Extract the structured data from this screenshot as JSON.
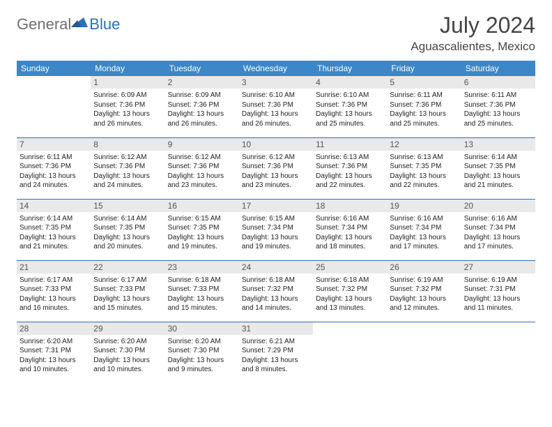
{
  "brand": {
    "general": "General",
    "blue": "Blue"
  },
  "title": "July 2024",
  "location": "Aguascalientes, Mexico",
  "colors": {
    "header_bg": "#3b87c8",
    "header_text": "#ffffff",
    "daynum_bg": "#e9e9e9",
    "border": "#2a71b8",
    "brand_gray": "#6f6f6f",
    "brand_blue": "#2a71b8"
  },
  "weekdays": [
    "Sunday",
    "Monday",
    "Tuesday",
    "Wednesday",
    "Thursday",
    "Friday",
    "Saturday"
  ],
  "weeks": [
    [
      {
        "day": "",
        "sunrise": "",
        "sunset": "",
        "daylight": ""
      },
      {
        "day": "1",
        "sunrise": "Sunrise: 6:09 AM",
        "sunset": "Sunset: 7:36 PM",
        "daylight": "Daylight: 13 hours and 26 minutes."
      },
      {
        "day": "2",
        "sunrise": "Sunrise: 6:09 AM",
        "sunset": "Sunset: 7:36 PM",
        "daylight": "Daylight: 13 hours and 26 minutes."
      },
      {
        "day": "3",
        "sunrise": "Sunrise: 6:10 AM",
        "sunset": "Sunset: 7:36 PM",
        "daylight": "Daylight: 13 hours and 26 minutes."
      },
      {
        "day": "4",
        "sunrise": "Sunrise: 6:10 AM",
        "sunset": "Sunset: 7:36 PM",
        "daylight": "Daylight: 13 hours and 25 minutes."
      },
      {
        "day": "5",
        "sunrise": "Sunrise: 6:11 AM",
        "sunset": "Sunset: 7:36 PM",
        "daylight": "Daylight: 13 hours and 25 minutes."
      },
      {
        "day": "6",
        "sunrise": "Sunrise: 6:11 AM",
        "sunset": "Sunset: 7:36 PM",
        "daylight": "Daylight: 13 hours and 25 minutes."
      }
    ],
    [
      {
        "day": "7",
        "sunrise": "Sunrise: 6:11 AM",
        "sunset": "Sunset: 7:36 PM",
        "daylight": "Daylight: 13 hours and 24 minutes."
      },
      {
        "day": "8",
        "sunrise": "Sunrise: 6:12 AM",
        "sunset": "Sunset: 7:36 PM",
        "daylight": "Daylight: 13 hours and 24 minutes."
      },
      {
        "day": "9",
        "sunrise": "Sunrise: 6:12 AM",
        "sunset": "Sunset: 7:36 PM",
        "daylight": "Daylight: 13 hours and 23 minutes."
      },
      {
        "day": "10",
        "sunrise": "Sunrise: 6:12 AM",
        "sunset": "Sunset: 7:36 PM",
        "daylight": "Daylight: 13 hours and 23 minutes."
      },
      {
        "day": "11",
        "sunrise": "Sunrise: 6:13 AM",
        "sunset": "Sunset: 7:36 PM",
        "daylight": "Daylight: 13 hours and 22 minutes."
      },
      {
        "day": "12",
        "sunrise": "Sunrise: 6:13 AM",
        "sunset": "Sunset: 7:35 PM",
        "daylight": "Daylight: 13 hours and 22 minutes."
      },
      {
        "day": "13",
        "sunrise": "Sunrise: 6:14 AM",
        "sunset": "Sunset: 7:35 PM",
        "daylight": "Daylight: 13 hours and 21 minutes."
      }
    ],
    [
      {
        "day": "14",
        "sunrise": "Sunrise: 6:14 AM",
        "sunset": "Sunset: 7:35 PM",
        "daylight": "Daylight: 13 hours and 21 minutes."
      },
      {
        "day": "15",
        "sunrise": "Sunrise: 6:14 AM",
        "sunset": "Sunset: 7:35 PM",
        "daylight": "Daylight: 13 hours and 20 minutes."
      },
      {
        "day": "16",
        "sunrise": "Sunrise: 6:15 AM",
        "sunset": "Sunset: 7:35 PM",
        "daylight": "Daylight: 13 hours and 19 minutes."
      },
      {
        "day": "17",
        "sunrise": "Sunrise: 6:15 AM",
        "sunset": "Sunset: 7:34 PM",
        "daylight": "Daylight: 13 hours and 19 minutes."
      },
      {
        "day": "18",
        "sunrise": "Sunrise: 6:16 AM",
        "sunset": "Sunset: 7:34 PM",
        "daylight": "Daylight: 13 hours and 18 minutes."
      },
      {
        "day": "19",
        "sunrise": "Sunrise: 6:16 AM",
        "sunset": "Sunset: 7:34 PM",
        "daylight": "Daylight: 13 hours and 17 minutes."
      },
      {
        "day": "20",
        "sunrise": "Sunrise: 6:16 AM",
        "sunset": "Sunset: 7:34 PM",
        "daylight": "Daylight: 13 hours and 17 minutes."
      }
    ],
    [
      {
        "day": "21",
        "sunrise": "Sunrise: 6:17 AM",
        "sunset": "Sunset: 7:33 PM",
        "daylight": "Daylight: 13 hours and 16 minutes."
      },
      {
        "day": "22",
        "sunrise": "Sunrise: 6:17 AM",
        "sunset": "Sunset: 7:33 PM",
        "daylight": "Daylight: 13 hours and 15 minutes."
      },
      {
        "day": "23",
        "sunrise": "Sunrise: 6:18 AM",
        "sunset": "Sunset: 7:33 PM",
        "daylight": "Daylight: 13 hours and 15 minutes."
      },
      {
        "day": "24",
        "sunrise": "Sunrise: 6:18 AM",
        "sunset": "Sunset: 7:32 PM",
        "daylight": "Daylight: 13 hours and 14 minutes."
      },
      {
        "day": "25",
        "sunrise": "Sunrise: 6:18 AM",
        "sunset": "Sunset: 7:32 PM",
        "daylight": "Daylight: 13 hours and 13 minutes."
      },
      {
        "day": "26",
        "sunrise": "Sunrise: 6:19 AM",
        "sunset": "Sunset: 7:32 PM",
        "daylight": "Daylight: 13 hours and 12 minutes."
      },
      {
        "day": "27",
        "sunrise": "Sunrise: 6:19 AM",
        "sunset": "Sunset: 7:31 PM",
        "daylight": "Daylight: 13 hours and 11 minutes."
      }
    ],
    [
      {
        "day": "28",
        "sunrise": "Sunrise: 6:20 AM",
        "sunset": "Sunset: 7:31 PM",
        "daylight": "Daylight: 13 hours and 10 minutes."
      },
      {
        "day": "29",
        "sunrise": "Sunrise: 6:20 AM",
        "sunset": "Sunset: 7:30 PM",
        "daylight": "Daylight: 13 hours and 10 minutes."
      },
      {
        "day": "30",
        "sunrise": "Sunrise: 6:20 AM",
        "sunset": "Sunset: 7:30 PM",
        "daylight": "Daylight: 13 hours and 9 minutes."
      },
      {
        "day": "31",
        "sunrise": "Sunrise: 6:21 AM",
        "sunset": "Sunset: 7:29 PM",
        "daylight": "Daylight: 13 hours and 8 minutes."
      },
      {
        "day": "",
        "sunrise": "",
        "sunset": "",
        "daylight": ""
      },
      {
        "day": "",
        "sunrise": "",
        "sunset": "",
        "daylight": ""
      },
      {
        "day": "",
        "sunrise": "",
        "sunset": "",
        "daylight": ""
      }
    ]
  ]
}
